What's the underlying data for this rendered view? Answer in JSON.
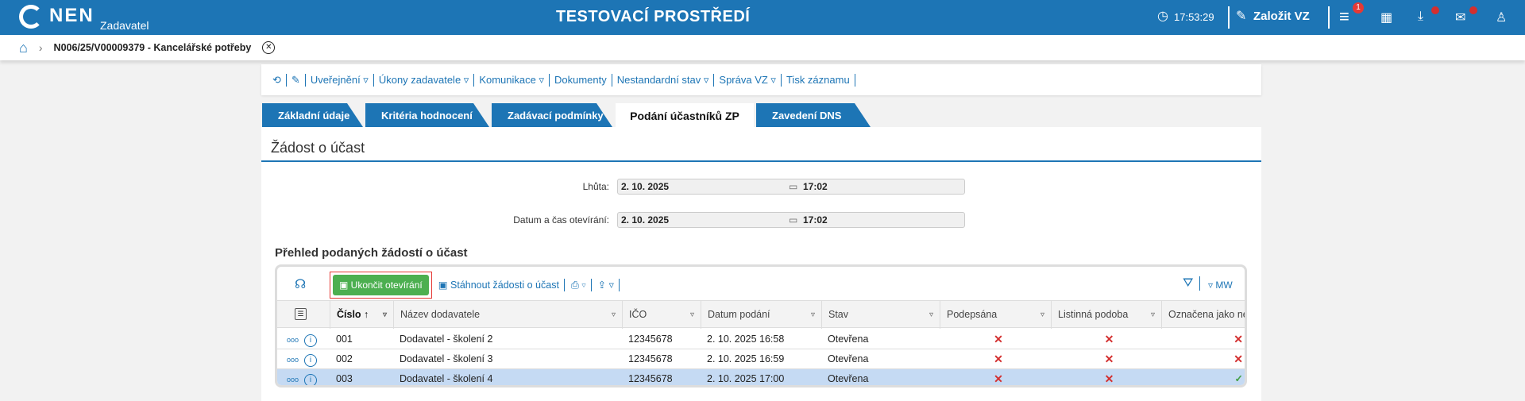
{
  "header": {
    "logo": "NEN",
    "logo_sub": "Zadavatel",
    "env_title": "TESTOVACÍ PROSTŘEDÍ",
    "time": "17:53:29",
    "create_label": "Založit VZ",
    "menu_badge": "1",
    "accent": "#1d75b5"
  },
  "breadcrumb": {
    "item": "N006/25/V00009379 - Kancelářské potřeby"
  },
  "toolbar": {
    "items": [
      "Uveřejnění ▿",
      "Úkony zadavatele ▿",
      "Komunikace ▿",
      "Dokumenty",
      "Nestandardní stav ▿",
      "Správa VZ ▿",
      "Tisk záznamu"
    ]
  },
  "tabs": [
    {
      "label": "Základní údaje"
    },
    {
      "label": "Kritéria hodnocení"
    },
    {
      "label": "Zadávací podmínky"
    },
    {
      "label": "Podání účastníků ZP",
      "active": true
    },
    {
      "label": "Zavedení DNS"
    }
  ],
  "section": {
    "title": "Žádost o účast",
    "fields": [
      {
        "label": "Lhůta:",
        "date": "2. 10. 2025",
        "time": "17:02"
      },
      {
        "label": "Datum a čas otevírání:",
        "date": "2. 10. 2025",
        "time": "17:02"
      }
    ]
  },
  "grid": {
    "title": "Přehled podaných žádostí o účast",
    "end_button": "Ukončit otevírání",
    "download_button": "Stáhnout žádosti o účast",
    "view_label": "MW",
    "columns": [
      "Číslo",
      "Název dodavatele",
      "IČO",
      "Datum podání",
      "Stav",
      "Podepsána",
      "Listinná podoba",
      "Označena jako ne"
    ],
    "rows": [
      {
        "cislo": "001",
        "nazev": "Dodavatel - školení 2",
        "ico": "12345678",
        "datum": "2. 10. 2025 16:58",
        "stav": "Otevřena",
        "podepsana": false,
        "listinna": false,
        "oznacena": false,
        "selected": false
      },
      {
        "cislo": "002",
        "nazev": "Dodavatel - školení 3",
        "ico": "12345678",
        "datum": "2. 10. 2025 16:59",
        "stav": "Otevřena",
        "podepsana": false,
        "listinna": false,
        "oznacena": false,
        "selected": false
      },
      {
        "cislo": "003",
        "nazev": "Dodavatel - školení 4",
        "ico": "12345678",
        "datum": "2. 10. 2025 17:00",
        "stav": "Otevřena",
        "podepsana": false,
        "listinna": false,
        "oznacena": true,
        "selected": true
      }
    ]
  }
}
